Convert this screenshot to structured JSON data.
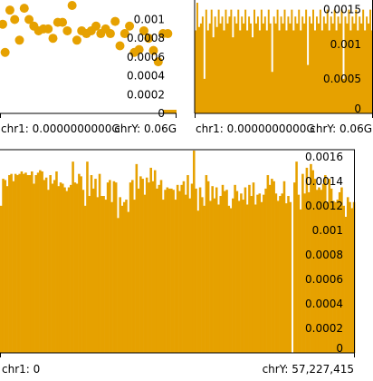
{
  "colors": {
    "accent": "#e6a100",
    "axis": "#000000",
    "background": "#ffffff"
  },
  "chart_data": [
    {
      "type": "scatter",
      "panel": "top-left",
      "x_range_labels": [
        "chr1: 0.0000000000G",
        "chrY: 0.06G"
      ],
      "y_ticks": [
        "0",
        "0.0002",
        "0.0004",
        "0.0006",
        "0.0008",
        "0.001"
      ],
      "ylim": [
        0,
        0.00115
      ],
      "points": [
        {
          "x": 0.0,
          "y": 0.00095
        },
        {
          "x": 0.01,
          "y": 0.00065
        },
        {
          "x": 0.03,
          "y": 0.0011
        },
        {
          "x": 0.05,
          "y": 0.001
        },
        {
          "x": 0.07,
          "y": 0.00078
        },
        {
          "x": 0.09,
          "y": 0.00112
        },
        {
          "x": 0.11,
          "y": 0.001
        },
        {
          "x": 0.13,
          "y": 0.00093
        },
        {
          "x": 0.15,
          "y": 0.00088
        },
        {
          "x": 0.17,
          "y": 0.0009
        },
        {
          "x": 0.19,
          "y": 0.0009
        },
        {
          "x": 0.21,
          "y": 0.0008
        },
        {
          "x": 0.23,
          "y": 0.00097
        },
        {
          "x": 0.25,
          "y": 0.00097
        },
        {
          "x": 0.27,
          "y": 0.00088
        },
        {
          "x": 0.29,
          "y": 0.00115
        },
        {
          "x": 0.31,
          "y": 0.00078
        },
        {
          "x": 0.33,
          "y": 0.00088
        },
        {
          "x": 0.35,
          "y": 0.00085
        },
        {
          "x": 0.37,
          "y": 0.00088
        },
        {
          "x": 0.39,
          "y": 0.00093
        },
        {
          "x": 0.41,
          "y": 0.00085
        },
        {
          "x": 0.43,
          "y": 0.0009
        },
        {
          "x": 0.45,
          "y": 0.00085
        },
        {
          "x": 0.47,
          "y": 0.00098
        },
        {
          "x": 0.49,
          "y": 0.00072
        },
        {
          "x": 0.51,
          "y": 0.00085
        },
        {
          "x": 0.53,
          "y": 0.00093
        },
        {
          "x": 0.55,
          "y": 0.00065
        },
        {
          "x": 0.57,
          "y": 0.00068
        },
        {
          "x": 0.59,
          "y": 0.00088
        },
        {
          "x": 0.61,
          "y": 0.0008
        },
        {
          "x": 0.63,
          "y": 0.00067
        },
        {
          "x": 0.65,
          "y": 0.00055
        },
        {
          "x": 0.67,
          "y": 0.00085
        },
        {
          "x": 0.69,
          "y": 0.00085
        }
      ]
    },
    {
      "type": "area",
      "panel": "top-right",
      "x_range_labels": [
        "chr1: 0.0000000000G",
        "chrY: 0.06G"
      ],
      "y_ticks": [
        "0",
        "0.0005",
        "0.001",
        "0.0015"
      ],
      "ylim": [
        0,
        0.0016
      ],
      "values": [
        0.0012,
        0.0016,
        0.00125,
        0.0013,
        0.0014,
        0.0005,
        0.0015,
        0.0012,
        0.0013,
        0.0015,
        0.0011,
        0.0014,
        0.00125,
        0.0015,
        0.0013,
        0.0014,
        0.0012,
        0.0015,
        0.0013,
        0.0014,
        0.0015,
        0.0011,
        0.0014,
        0.0013,
        0.0015,
        0.0012,
        0.0014,
        0.0013,
        0.0015,
        0.0012,
        0.0014,
        0.0013,
        0.0011,
        0.0015,
        0.0013,
        0.0014,
        0.0012,
        0.0015,
        0.0013,
        0.0014,
        0.0012,
        0.0015,
        0.0013,
        0.0006,
        0.0014,
        0.0013,
        0.0015,
        0.0012,
        0.0014,
        0.0013,
        0.0015,
        0.0012,
        0.0014,
        0.0013,
        0.0015,
        0.0012,
        0.0014,
        0.0013,
        0.0015,
        0.0012,
        0.0014,
        0.0013,
        0.0015,
        0.0007,
        0.0014,
        0.0013,
        0.0015,
        0.0012,
        0.0014,
        0.0013,
        0.0015,
        0.0012,
        0.0014,
        0.0013,
        0.0015,
        0.0012,
        0.0014,
        0.0013,
        0.0015,
        0.0012,
        0.0014,
        0.0013,
        0.0015,
        0.0005,
        0.0014,
        0.0013,
        0.0015,
        0.0012,
        0.0014,
        0.0013,
        0.0015,
        0.0012,
        0.0014,
        0.0013,
        0.0015,
        0.0012,
        0.0014,
        0.0013,
        0.0015,
        0.0012
      ]
    },
    {
      "type": "bar",
      "panel": "bottom",
      "x_range_labels": [
        "chr1: 0",
        "chrY: 57,227,415"
      ],
      "y_ticks": [
        "0",
        "0.0002",
        "0.0004",
        "0.0006",
        "0.0008",
        "0.001",
        "0.0012",
        "0.0014",
        "0.0016"
      ],
      "ylim": [
        0,
        0.00165
      ],
      "values": [
        0.0012,
        0.00142,
        0.00141,
        0.00136,
        0.00145,
        0.00146,
        0.0014,
        0.00146,
        0.00145,
        0.00146,
        0.00148,
        0.00146,
        0.00147,
        0.00145,
        0.00145,
        0.00148,
        0.00138,
        0.00145,
        0.00147,
        0.00149,
        0.00148,
        0.00141,
        0.00143,
        0.00133,
        0.00145,
        0.00138,
        0.00141,
        0.00148,
        0.00136,
        0.00139,
        0.00138,
        0.00135,
        0.00132,
        0.00135,
        0.00137,
        0.00156,
        0.00139,
        0.00138,
        0.00146,
        0.00144,
        0.00133,
        0.0012,
        0.00156,
        0.00128,
        0.00145,
        0.00134,
        0.00142,
        0.00127,
        0.00146,
        0.00128,
        0.00128,
        0.00125,
        0.00139,
        0.00141,
        0.00123,
        0.0014,
        0.00139,
        0.0011,
        0.00127,
        0.0012,
        0.00123,
        0.00125,
        0.00115,
        0.00139,
        0.00141,
        0.00125,
        0.00154,
        0.00134,
        0.00144,
        0.00142,
        0.00129,
        0.00143,
        0.00139,
        0.00151,
        0.0014,
        0.00149,
        0.00134,
        0.00137,
        0.00141,
        0.00125,
        0.00133,
        0.00135,
        0.00134,
        0.00134,
        0.00133,
        0.00125,
        0.00137,
        0.00132,
        0.00137,
        0.0014,
        0.00129,
        0.00145,
        0.00126,
        0.00138,
        0.00165,
        0.00134,
        0.00116,
        0.00135,
        0.00127,
        0.0012,
        0.00145,
        0.0014,
        0.00124,
        0.00136,
        0.00126,
        0.00135,
        0.00121,
        0.00128,
        0.00137,
        0.00132,
        0.00133,
        0.0012,
        0.00118,
        0.00126,
        0.00137,
        0.00132,
        0.00124,
        0.0013,
        0.00125,
        0.00135,
        0.00121,
        0.00137,
        0.00128,
        0.00139,
        0.00121,
        0.00129,
        0.0013,
        0.00123,
        0.00129,
        0.00134,
        0.00145,
        0.00137,
        0.00142,
        0.0014,
        0.0013,
        0.00124,
        0.00128,
        0.0013,
        0.0014,
        0.00122,
        0.00128,
        0.00123,
        0.0,
        0.00139,
        0.00156,
        0.00129,
        0.00117,
        0.00146,
        0.0013,
        0.00151,
        0.00131,
        0.00154,
        0.00149,
        0.00142,
        0.00133,
        0.00135,
        0.00133,
        0.00138,
        0.00145,
        0.00123,
        0.00142,
        0.00134,
        0.00124,
        0.00123,
        0.00125,
        0.00131,
        0.00135,
        0.0012,
        0.00111,
        0.00127,
        0.00123,
        0.00118,
        0.00123
      ]
    }
  ]
}
